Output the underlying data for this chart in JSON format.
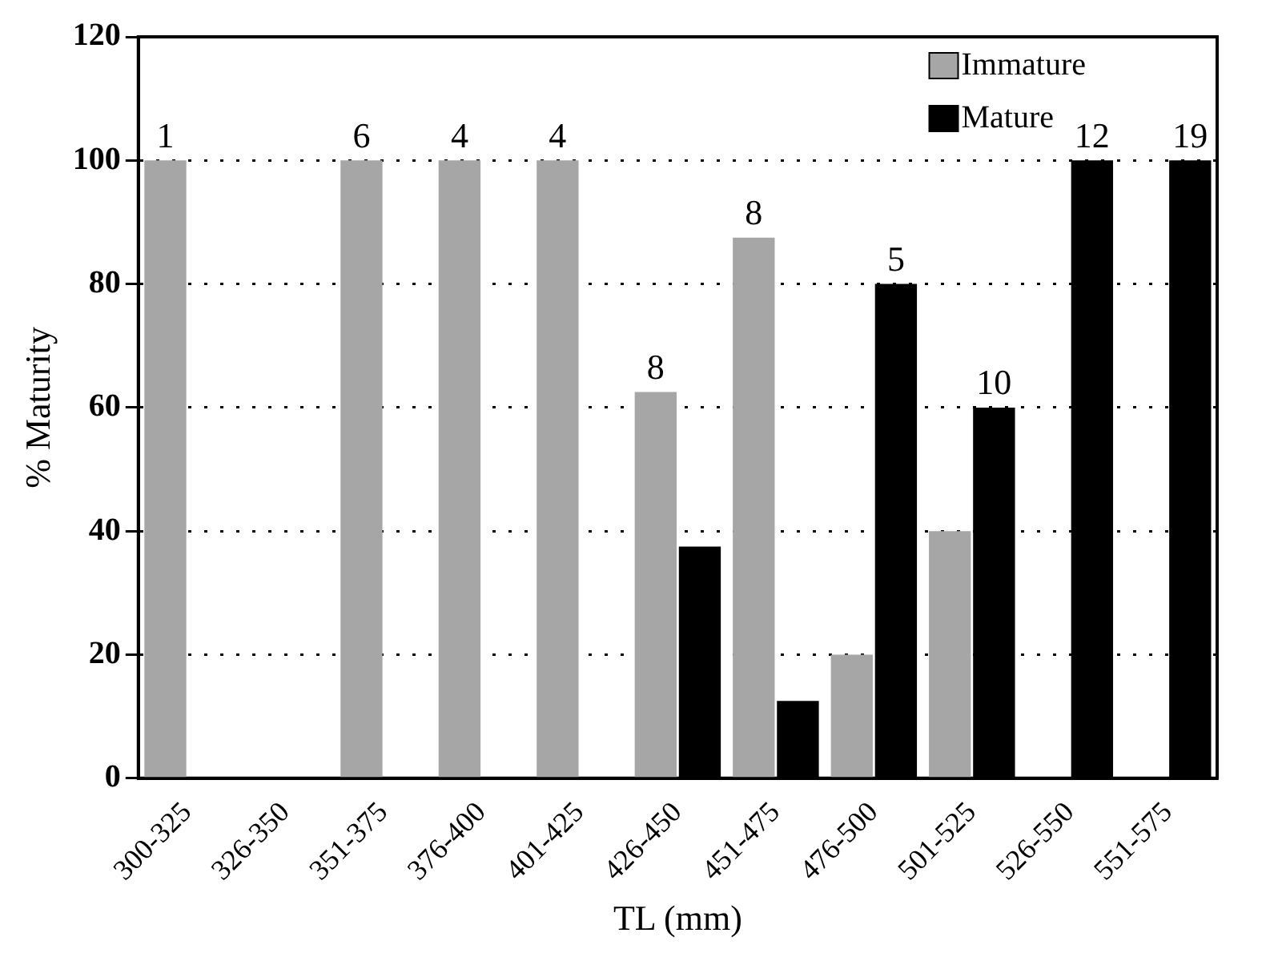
{
  "chart_data": {
    "type": "bar",
    "xlabel": "TL (mm)",
    "ylabel": "% Maturity",
    "categories": [
      "300-325",
      "326-350",
      "351-375",
      "376-400",
      "401-425",
      "426-450",
      "451-475",
      "476-500",
      "501-525",
      "526-550",
      "551-575"
    ],
    "series": [
      {
        "name": "Immature",
        "color": "#a6a6a6",
        "values": [
          100,
          0,
          100,
          100,
          100,
          62.5,
          87.5,
          20,
          40,
          0,
          0
        ]
      },
      {
        "name": "Mature",
        "color": "#000000",
        "values": [
          0,
          0,
          0,
          0,
          0,
          37.5,
          12.5,
          80,
          60,
          100,
          100
        ]
      }
    ],
    "ylim": [
      0,
      120
    ],
    "yticks": [
      0,
      20,
      40,
      60,
      80,
      100,
      120
    ],
    "grid": "y",
    "legend": "top right",
    "annotations": [
      {
        "text": "1",
        "x": "300-325",
        "y": 100
      },
      {
        "text": "6",
        "x": "351-375",
        "y": 100
      },
      {
        "text": "4",
        "x": "376-400",
        "y": 100
      },
      {
        "text": "4",
        "x": "401-425",
        "y": 100
      },
      {
        "text": "8",
        "x": "426-450",
        "y": 62.5
      },
      {
        "text": "8",
        "x": "451-475",
        "y": 87.5
      },
      {
        "text": "5",
        "x": "476-500",
        "y": 80
      },
      {
        "text": "10",
        "x": "501-525",
        "y": 60
      },
      {
        "text": "12",
        "x": "526-550",
        "y": 100
      },
      {
        "text": "19",
        "x": "551-575",
        "y": 100
      }
    ]
  }
}
